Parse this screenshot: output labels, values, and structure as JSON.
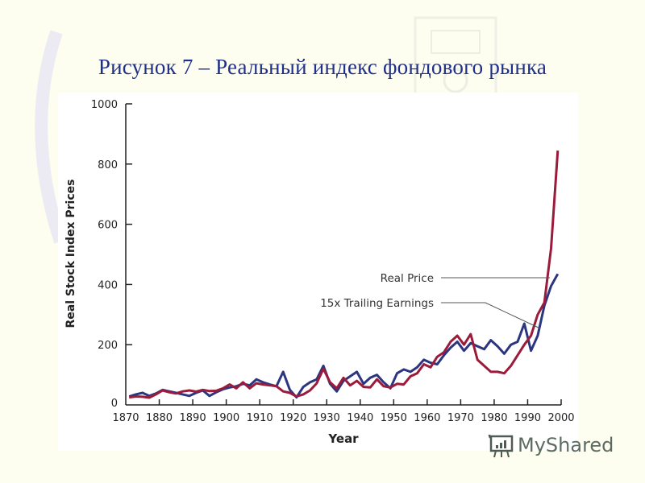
{
  "slide": {
    "title": "Рисунок 7 – Реальный индекс фондового рынка",
    "background_color": "#fdfdf0",
    "title_color": "#1f2f8a"
  },
  "watermark": {
    "text": "MyShared",
    "icon": "presentation-chart-icon"
  },
  "chart_data": {
    "type": "line",
    "title": "",
    "xlabel": "Year",
    "ylabel": "Real Stock Index Prices",
    "xlim": [
      1870,
      2000
    ],
    "ylim": [
      0,
      1000
    ],
    "x_ticks": [
      1870,
      1880,
      1890,
      1900,
      1910,
      1920,
      1930,
      1940,
      1950,
      1960,
      1970,
      1980,
      1990,
      2000
    ],
    "y_ticks": [
      0,
      200,
      400,
      600,
      800,
      1000
    ],
    "grid": false,
    "legend_position": "inline annotations with leader lines, right side",
    "series": [
      {
        "name": "Real Price",
        "color": "#9b1b3a",
        "x": [
          1871,
          1873,
          1875,
          1877,
          1879,
          1881,
          1883,
          1885,
          1887,
          1889,
          1891,
          1893,
          1895,
          1897,
          1899,
          1901,
          1903,
          1905,
          1907,
          1909,
          1911,
          1913,
          1915,
          1917,
          1919,
          1921,
          1923,
          1925,
          1927,
          1929,
          1931,
          1933,
          1935,
          1937,
          1939,
          1941,
          1943,
          1945,
          1947,
          1949,
          1951,
          1953,
          1955,
          1957,
          1959,
          1961,
          1963,
          1965,
          1967,
          1969,
          1971,
          1973,
          1975,
          1977,
          1979,
          1981,
          1983,
          1985,
          1987,
          1989,
          1991,
          1993,
          1995,
          1997,
          1999
        ],
        "values": [
          25,
          28,
          27,
          24,
          35,
          48,
          42,
          38,
          45,
          48,
          44,
          50,
          46,
          47,
          55,
          68,
          55,
          75,
          55,
          72,
          68,
          65,
          62,
          45,
          40,
          28,
          35,
          48,
          72,
          120,
          75,
          55,
          90,
          65,
          80,
          60,
          58,
          85,
          62,
          58,
          70,
          68,
          95,
          105,
          135,
          125,
          160,
          175,
          210,
          230,
          200,
          235,
          150,
          130,
          110,
          110,
          105,
          130,
          165,
          200,
          230,
          300,
          340,
          520,
          845
        ]
      },
      {
        "name": "15x Trailing Earnings",
        "color": "#2c3580",
        "x": [
          1871,
          1873,
          1875,
          1877,
          1879,
          1881,
          1883,
          1885,
          1887,
          1889,
          1891,
          1893,
          1895,
          1897,
          1899,
          1901,
          1903,
          1905,
          1907,
          1909,
          1911,
          1913,
          1915,
          1917,
          1919,
          1921,
          1923,
          1925,
          1927,
          1929,
          1931,
          1933,
          1935,
          1937,
          1939,
          1941,
          1943,
          1945,
          1947,
          1949,
          1951,
          1953,
          1955,
          1957,
          1959,
          1961,
          1963,
          1965,
          1967,
          1969,
          1971,
          1973,
          1975,
          1977,
          1979,
          1981,
          1983,
          1985,
          1987,
          1989,
          1991,
          1993,
          1995,
          1997,
          1999
        ],
        "values": [
          28,
          35,
          40,
          30,
          38,
          50,
          45,
          40,
          35,
          30,
          40,
          48,
          30,
          42,
          52,
          58,
          62,
          70,
          65,
          85,
          75,
          68,
          62,
          110,
          50,
          25,
          60,
          75,
          85,
          130,
          70,
          45,
          80,
          95,
          110,
          70,
          90,
          100,
          75,
          55,
          105,
          118,
          110,
          125,
          150,
          140,
          135,
          165,
          190,
          210,
          180,
          205,
          195,
          185,
          215,
          195,
          170,
          200,
          210,
          270,
          180,
          230,
          330,
          395,
          435
        ]
      }
    ],
    "annotations": [
      {
        "text": "Real Price",
        "points_to": "Real Price",
        "at_year": 1997,
        "at_value": 435
      },
      {
        "text": "15x Trailing Earnings",
        "points_to": "15x Trailing Earnings",
        "at_year": 1995,
        "at_value": 330
      }
    ]
  }
}
